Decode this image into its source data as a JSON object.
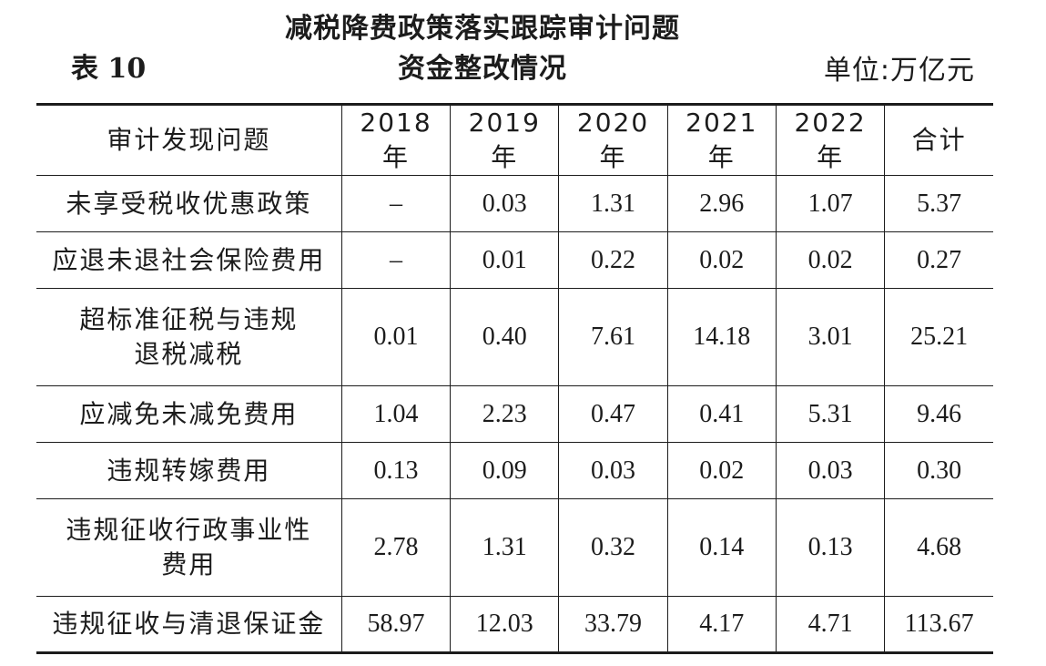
{
  "header": {
    "table_label": "表 10",
    "title_line1": "减税降费政策落实跟踪审计问题",
    "title_line2": "资金整改情况",
    "unit": "单位:万亿元"
  },
  "table": {
    "columns": [
      "审计发现问题",
      "2018 年",
      "2019 年",
      "2020 年",
      "2021 年",
      "2022 年",
      "合计"
    ],
    "rows": [
      {
        "label": "未享受税收优惠政策",
        "values": [
          "–",
          "0.03",
          "1.31",
          "2.96",
          "1.07",
          "5.37"
        ]
      },
      {
        "label": "应退未退社会保险费用",
        "values": [
          "–",
          "0.01",
          "0.22",
          "0.02",
          "0.02",
          "0.27"
        ]
      },
      {
        "label": "超标准征税与违规\n退税减税",
        "values": [
          "0.01",
          "0.40",
          "7.61",
          "14.18",
          "3.01",
          "25.21"
        ]
      },
      {
        "label": "应减免未减免费用",
        "values": [
          "1.04",
          "2.23",
          "0.47",
          "0.41",
          "5.31",
          "9.46"
        ]
      },
      {
        "label": "违规转嫁费用",
        "values": [
          "0.13",
          "0.09",
          "0.03",
          "0.02",
          "0.03",
          "0.30"
        ]
      },
      {
        "label": "违规征收行政事业性\n费用",
        "values": [
          "2.78",
          "1.31",
          "0.32",
          "0.14",
          "0.13",
          "4.68"
        ]
      },
      {
        "label": "违规征收与清退保证金",
        "values": [
          "58.97",
          "12.03",
          "33.79",
          "4.17",
          "4.71",
          "113.67"
        ]
      }
    ]
  }
}
